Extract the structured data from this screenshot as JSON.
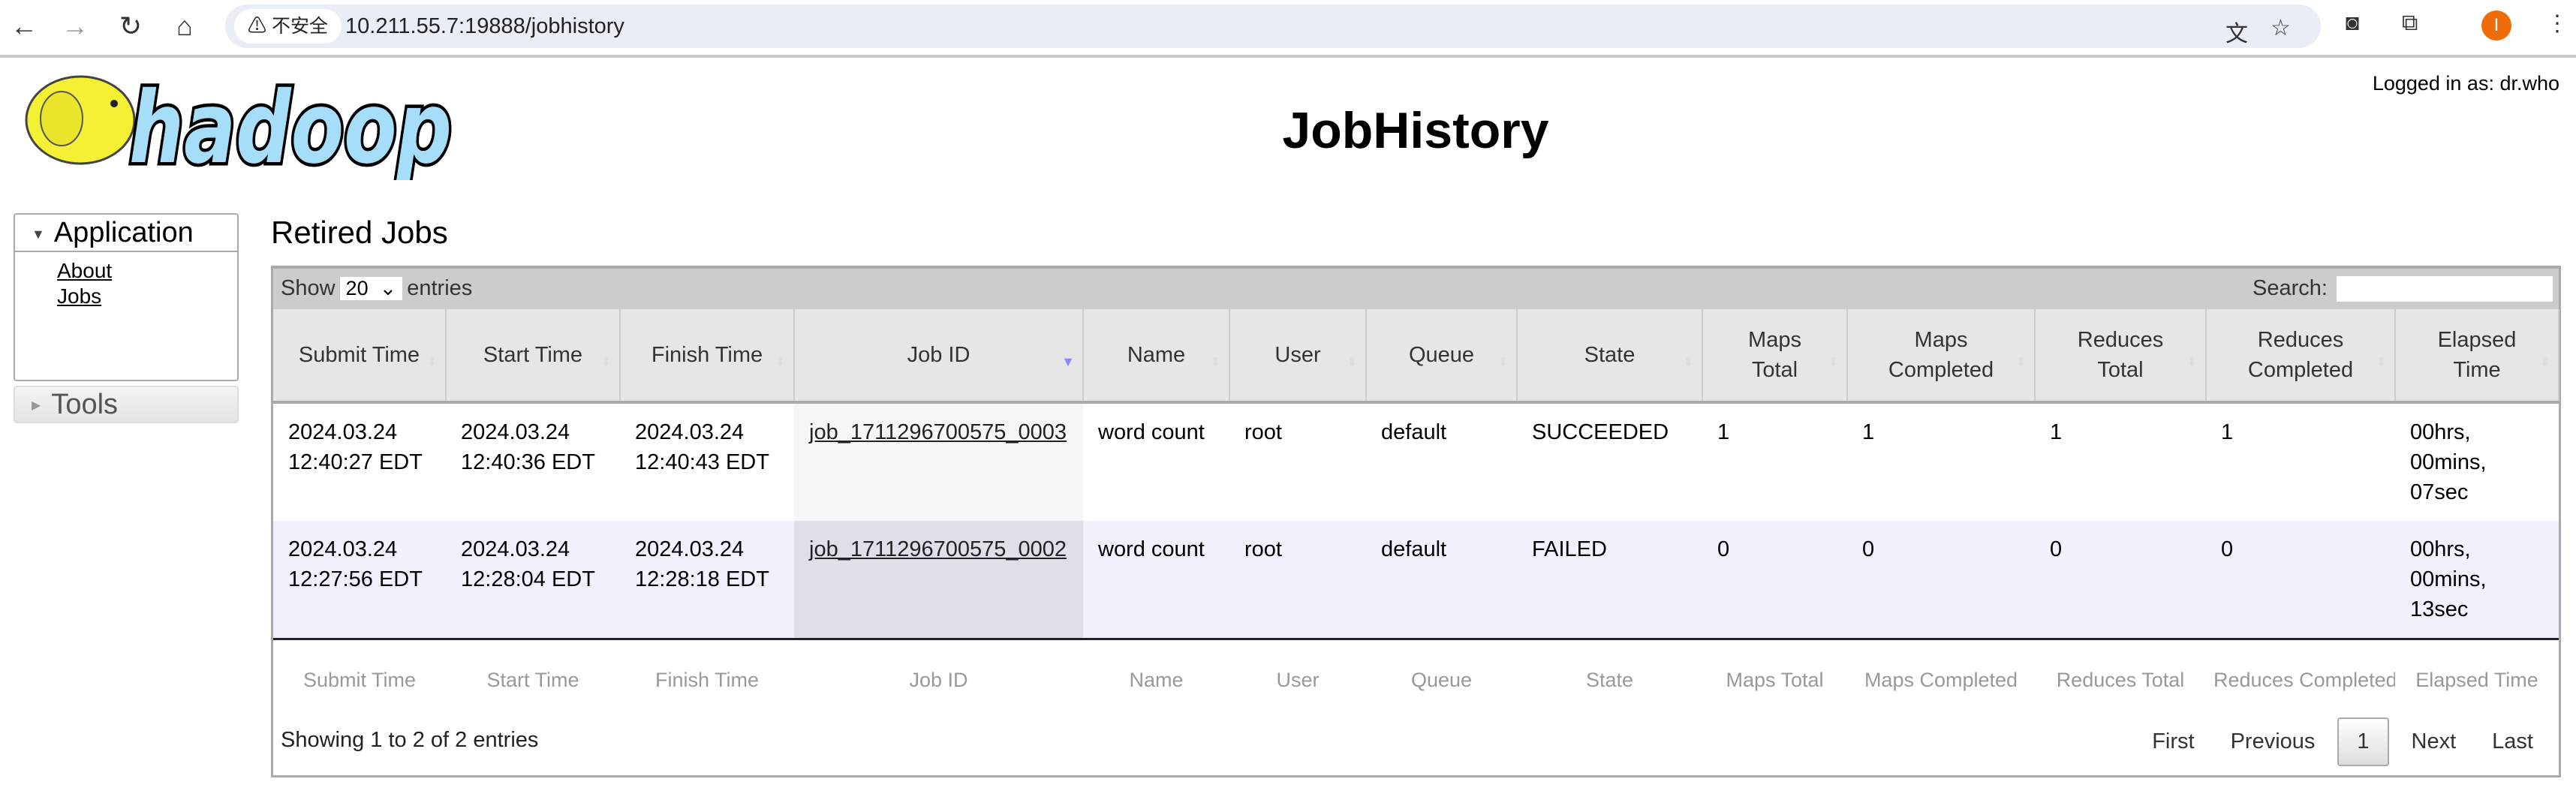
{
  "browser": {
    "security_label": "不安全",
    "url": "10.211.55.7:19888/jobhistory",
    "profile_initial": "I"
  },
  "logo": {
    "text": "hadoop"
  },
  "header": {
    "title": "JobHistory",
    "logged_in": "Logged in as: dr.who"
  },
  "sidebar": {
    "application": "Application",
    "links": [
      "About",
      "Jobs"
    ],
    "tools": "Tools"
  },
  "main": {
    "title": "Retired Jobs"
  },
  "table": {
    "show_label": "Show",
    "entries_value": "20",
    "entries_label": "entries",
    "search_label": "Search:",
    "search_value": "",
    "columns": [
      "Submit Time",
      "Start Time",
      "Finish Time",
      "Job ID",
      "Name",
      "User",
      "Queue",
      "State",
      "Maps Total",
      "Maps Completed",
      "Reduces Total",
      "Reduces Completed",
      "Elapsed Time"
    ],
    "sorted_column": "Job ID",
    "rows": [
      [
        "2024.03.24 12:40:27 EDT",
        "2024.03.24 12:40:36 EDT",
        "2024.03.24 12:40:43 EDT",
        "job_1711296700575_0003",
        "word count",
        "root",
        "default",
        "SUCCEEDED",
        "1",
        "1",
        "1",
        "1",
        "00hrs, 00mins, 07sec"
      ],
      [
        "2024.03.24 12:27:56 EDT",
        "2024.03.24 12:28:04 EDT",
        "2024.03.24 12:28:18 EDT",
        "job_1711296700575_0002",
        "word count",
        "root",
        "default",
        "FAILED",
        "0",
        "0",
        "0",
        "0",
        "00hrs, 00mins, 13sec"
      ]
    ],
    "footer_filters": [
      "Submit Time",
      "Start Time",
      "Finish Time",
      "Job ID",
      "Name",
      "User",
      "Queue",
      "State",
      "Maps Total",
      "Maps Completed",
      "Reduces Total",
      "Reduces Completed",
      "Elapsed Time"
    ],
    "info": "Showing 1 to 2 of 2 entries",
    "pager": {
      "first": "First",
      "previous": "Previous",
      "current": "1",
      "next": "Next",
      "last": "Last"
    }
  }
}
